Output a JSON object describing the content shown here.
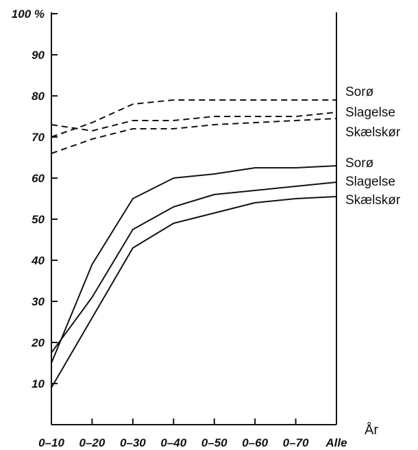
{
  "chart_data": {
    "type": "line",
    "x_unit_label": "År",
    "y_unit_suffix": "%",
    "categories": [
      "0–10",
      "0–20",
      "0–30",
      "0–40",
      "0–50",
      "0–60",
      "0–70",
      "Alle"
    ],
    "ylim": [
      0,
      100
    ],
    "yticks": [
      10,
      20,
      30,
      40,
      50,
      60,
      70,
      80,
      90,
      100
    ],
    "ytick_labels": [
      "10",
      "20",
      "30",
      "40",
      "50",
      "60",
      "70",
      "80",
      "90",
      "100 %"
    ],
    "grid": false,
    "series": [
      {
        "name": "Sorø",
        "style": "dashed",
        "values": [
          70,
          73.5,
          78,
          79,
          79,
          79,
          79,
          79
        ]
      },
      {
        "name": "Slagelse",
        "style": "dashed",
        "values": [
          73,
          71.5,
          74,
          74,
          75,
          75,
          75,
          76
        ]
      },
      {
        "name": "Skælskør",
        "style": "dashed",
        "values": [
          66,
          69.5,
          72,
          72,
          73,
          73.5,
          74,
          74.5
        ]
      },
      {
        "name": "Sorø",
        "style": "solid",
        "values": [
          15,
          39,
          55,
          60,
          61,
          62.5,
          62.5,
          63
        ]
      },
      {
        "name": "Slagelse",
        "style": "solid",
        "values": [
          17.5,
          31,
          47.5,
          53,
          56,
          57,
          58,
          59
        ]
      },
      {
        "name": "Skælskør",
        "style": "solid",
        "values": [
          9,
          26,
          43,
          49,
          51.5,
          54,
          55,
          55.5
        ]
      }
    ]
  }
}
